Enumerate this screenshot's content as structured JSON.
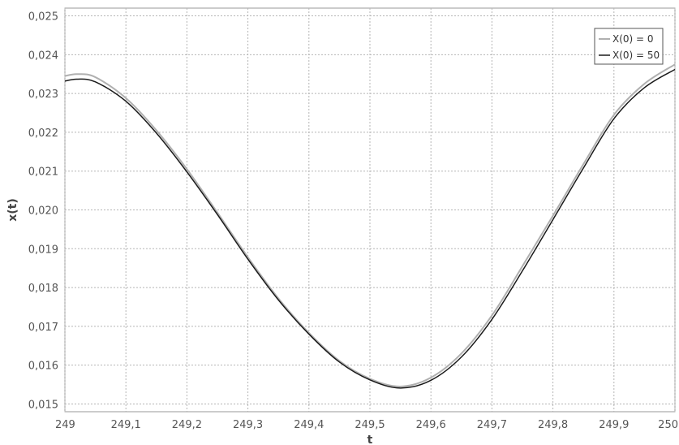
{
  "chart_data": {
    "type": "line",
    "title": "",
    "xlabel": "t",
    "ylabel": "x(t)",
    "xlim": [
      249.0,
      250.0
    ],
    "ylim": [
      0.0148,
      0.0252
    ],
    "x_ticks": [
      249.0,
      249.1,
      249.2,
      249.3,
      249.4,
      249.5,
      249.6,
      249.7,
      249.8,
      249.9,
      250.0
    ],
    "x_tick_labels": [
      "249",
      "249,1",
      "249,2",
      "249,3",
      "249,4",
      "249,5",
      "249,6",
      "249,7",
      "249,8",
      "249,9",
      "250"
    ],
    "y_ticks": [
      0.015,
      0.016,
      0.017,
      0.018,
      0.019,
      0.02,
      0.021,
      0.022,
      0.023,
      0.024,
      0.025
    ],
    "y_tick_labels": [
      "0,015",
      "0,016",
      "0,017",
      "0,018",
      "0,019",
      "0,020",
      "0,021",
      "0,022",
      "0,023",
      "0,024",
      "0,025"
    ],
    "grid": true,
    "legend_position": "top-right",
    "series": [
      {
        "name": "X(0) = 0",
        "color": "#b0b0b0",
        "x": [
          249.0,
          249.02,
          249.05,
          249.1,
          249.15,
          249.2,
          249.25,
          249.3,
          249.35,
          249.4,
          249.45,
          249.5,
          249.55,
          249.6,
          249.65,
          249.7,
          249.75,
          249.8,
          249.85,
          249.9,
          249.95,
          250.0
        ],
        "y": [
          0.02345,
          0.0235,
          0.02342,
          0.02288,
          0.02205,
          0.02105,
          0.01993,
          0.01878,
          0.01772,
          0.01683,
          0.01611,
          0.01565,
          0.01545,
          0.01568,
          0.0163,
          0.01728,
          0.01855,
          0.01985,
          0.02118,
          0.02245,
          0.02325,
          0.02375
        ]
      },
      {
        "name": "X(0) = 50",
        "color": "#1a1a1a",
        "x": [
          249.0,
          249.02,
          249.05,
          249.1,
          249.15,
          249.2,
          249.25,
          249.3,
          249.35,
          249.4,
          249.45,
          249.5,
          249.55,
          249.6,
          249.65,
          249.7,
          249.75,
          249.8,
          249.85,
          249.9,
          249.95,
          250.0
        ],
        "y": [
          0.02332,
          0.02337,
          0.0233,
          0.0228,
          0.02198,
          0.02098,
          0.01988,
          0.01873,
          0.01768,
          0.0168,
          0.01608,
          0.01562,
          0.01541,
          0.01561,
          0.01621,
          0.01718,
          0.01843,
          0.01975,
          0.02108,
          0.02235,
          0.02315,
          0.02362
        ]
      }
    ]
  }
}
